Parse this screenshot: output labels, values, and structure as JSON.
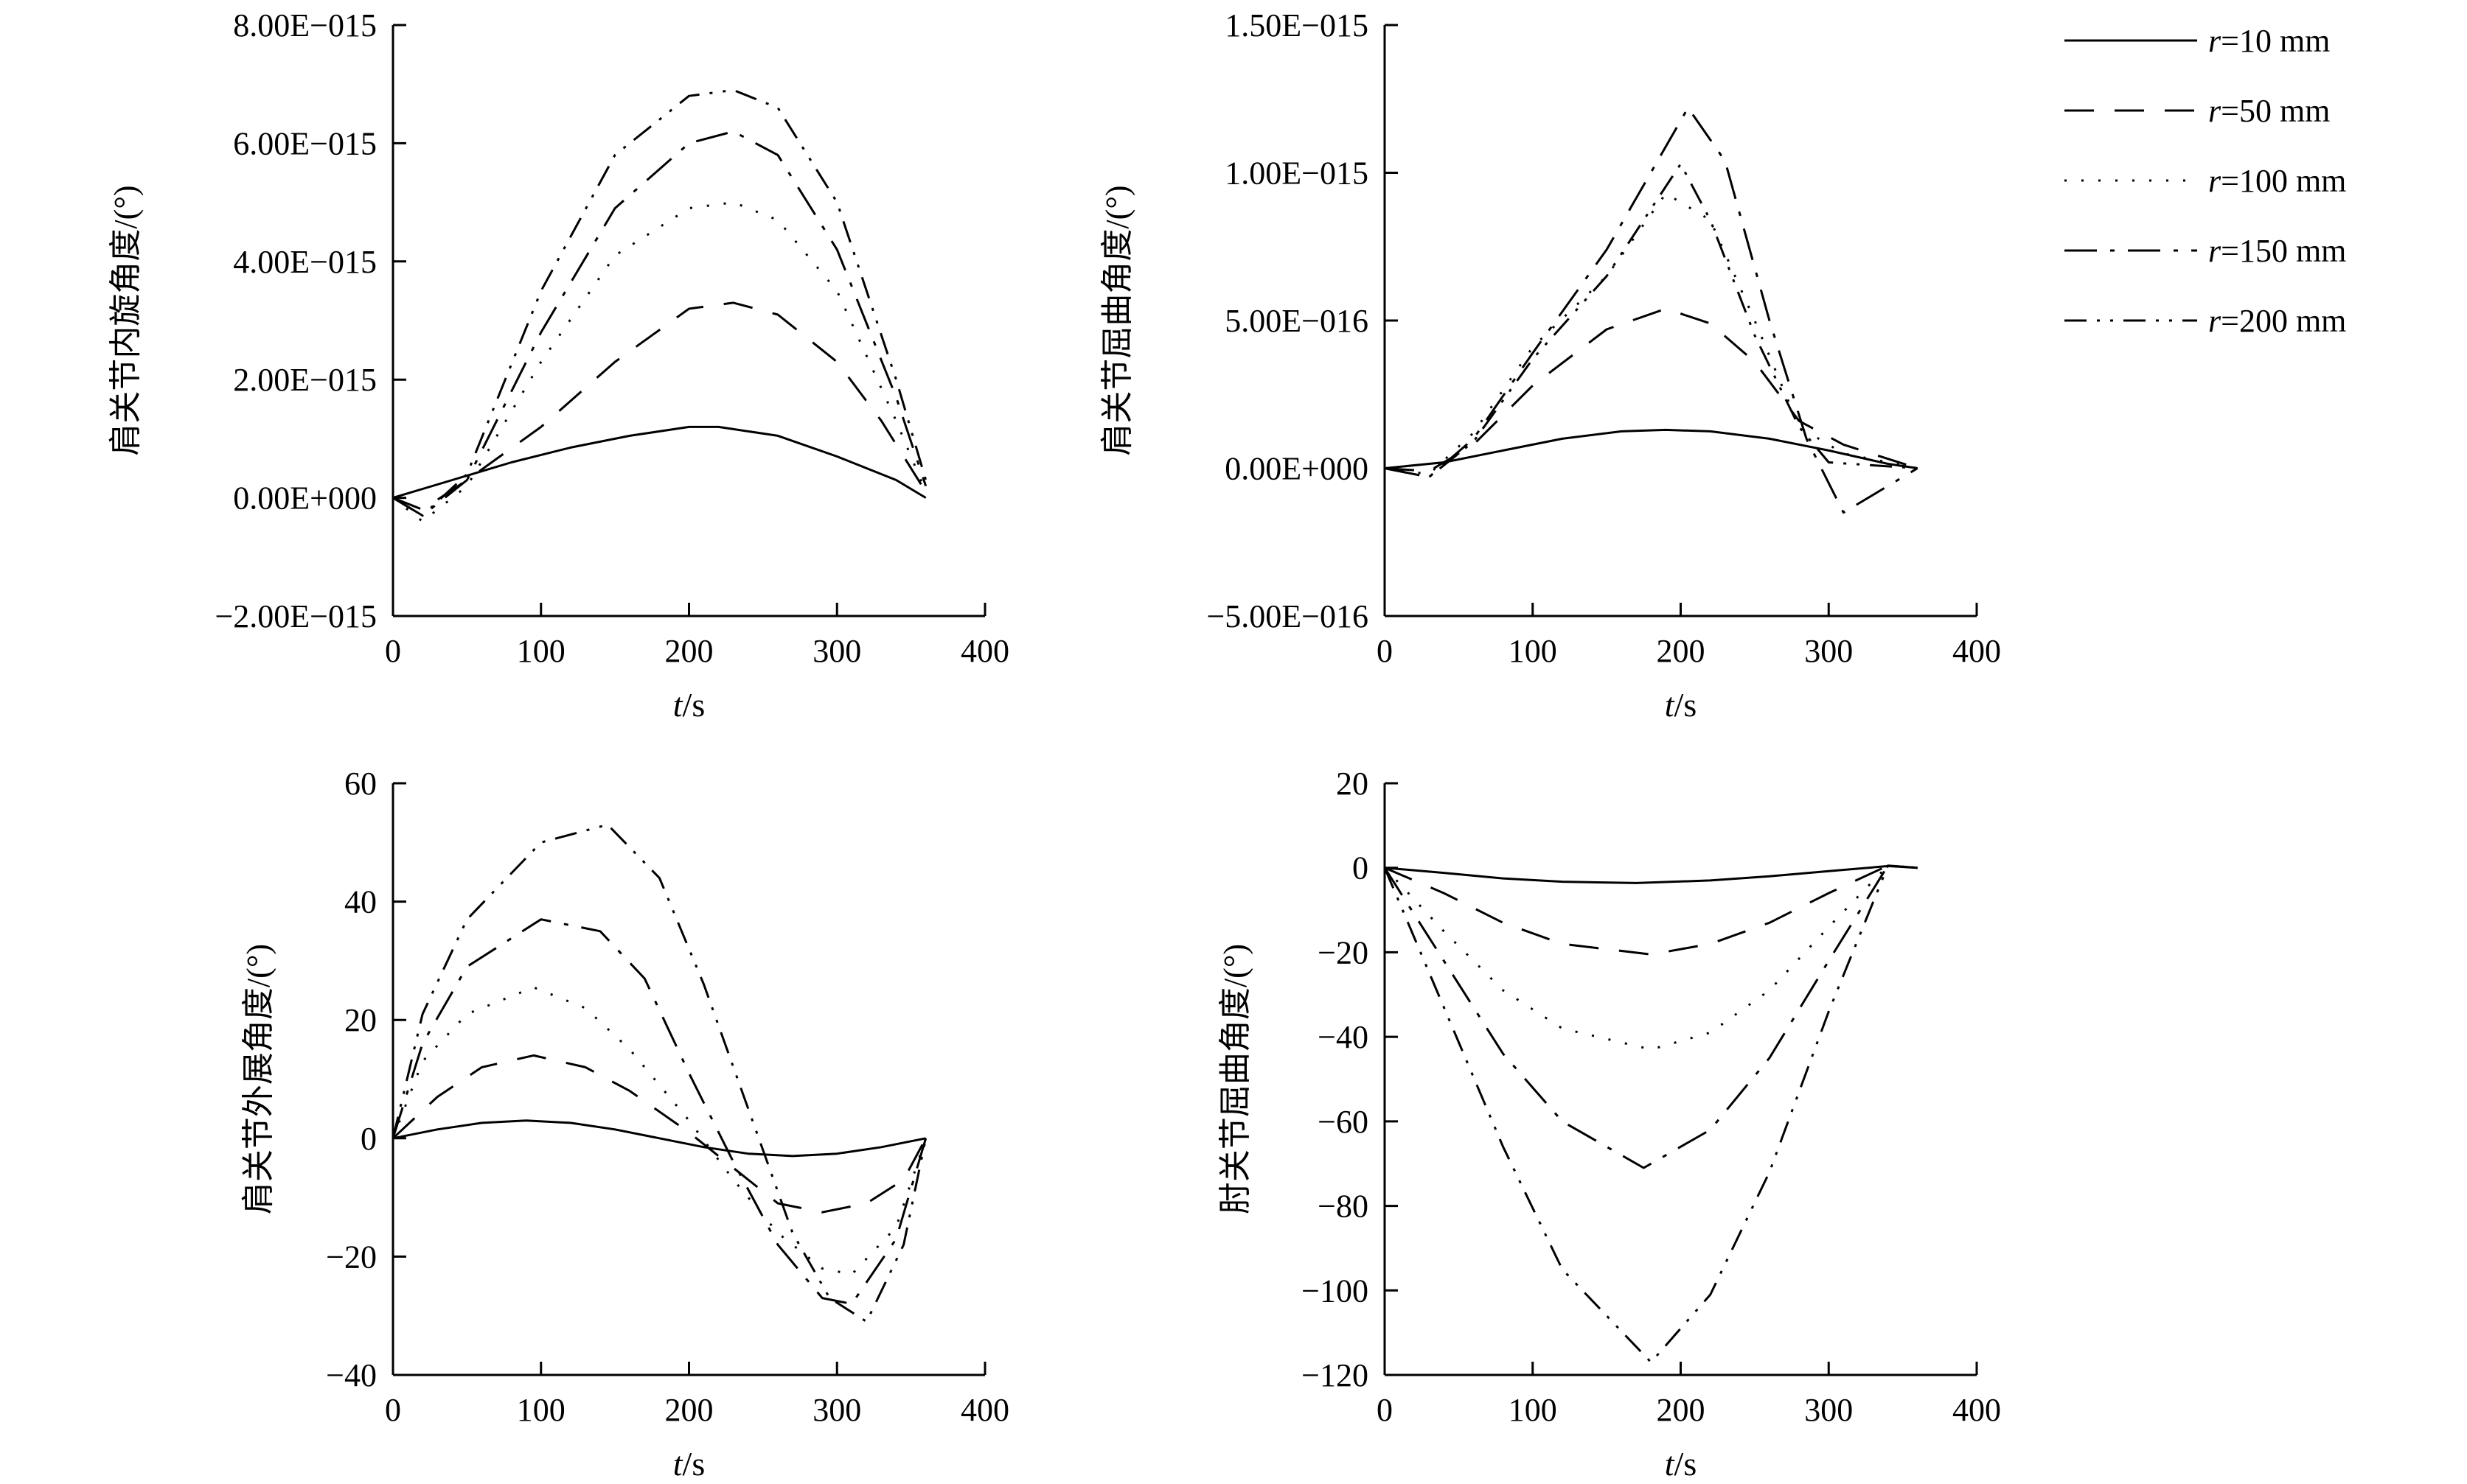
{
  "legend": {
    "items": [
      {
        "var": "r",
        "text": "=10 mm",
        "dash": "solid"
      },
      {
        "var": "r",
        "text": "=50 mm",
        "dash": "dash"
      },
      {
        "var": "r",
        "text": "=100 mm",
        "dash": "dot"
      },
      {
        "var": "r",
        "text": "=150 mm",
        "dash": "longdashdot"
      },
      {
        "var": "r",
        "text": "=200 mm",
        "dash": "dashdotdot"
      }
    ]
  },
  "chart_data": [
    {
      "type": "line",
      "ylabel": "肩关节内旋角度/(°)",
      "xlabel_var": "t",
      "xlabel_unit": "/s",
      "xlim": [
        0,
        400
      ],
      "xticks": [
        0,
        100,
        200,
        300,
        400
      ],
      "ylim": [
        -2e-15,
        8e-15
      ],
      "yticks": [
        -2e-15,
        0,
        2e-15,
        4e-15,
        6e-15,
        8e-15
      ],
      "ytick_labels": [
        "−2.00E−015",
        "0.00E+000",
        "2.00E−015",
        "4.00E−015",
        "6.00E−015",
        "8.00E−015"
      ],
      "series": [
        {
          "name": "r=10 mm",
          "dash": "solid",
          "x": [
            0,
            40,
            80,
            120,
            160,
            200,
            220,
            260,
            300,
            340,
            360
          ],
          "y": [
            0,
            3e-16,
            6e-16,
            8.5e-16,
            1.05e-15,
            1.2e-15,
            1.2e-15,
            1.05e-15,
            7e-16,
            3e-16,
            0
          ]
        },
        {
          "name": "r=50 mm",
          "dash": "dash",
          "x": [
            0,
            20,
            50,
            100,
            150,
            200,
            230,
            260,
            300,
            330,
            360
          ],
          "y": [
            0,
            -2e-16,
            3e-16,
            1.2e-15,
            2.3e-15,
            3.2e-15,
            3.3e-15,
            3.1e-15,
            2.3e-15,
            1.3e-15,
            1e-16
          ]
        },
        {
          "name": "r=100 mm",
          "dash": "dot",
          "x": [
            0,
            20,
            50,
            100,
            150,
            200,
            230,
            260,
            300,
            340,
            360
          ],
          "y": [
            0,
            -4e-16,
            2e-16,
            2.3e-15,
            4.1e-15,
            4.9e-15,
            5e-15,
            4.7e-15,
            3.5e-15,
            1.3e-15,
            1e-16
          ]
        },
        {
          "name": "r=150 mm",
          "dash": "longdashdot",
          "x": [
            0,
            20,
            50,
            100,
            150,
            200,
            230,
            260,
            300,
            340,
            360
          ],
          "y": [
            0,
            -3e-16,
            3e-16,
            2.8e-15,
            4.9e-15,
            6e-15,
            6.2e-15,
            5.8e-15,
            4.2e-15,
            1.7e-15,
            2e-16
          ]
        },
        {
          "name": "r=200 mm",
          "dash": "dashdotdot",
          "x": [
            0,
            20,
            50,
            100,
            150,
            200,
            230,
            260,
            300,
            340,
            360
          ],
          "y": [
            0,
            -3e-16,
            4e-16,
            3.5e-15,
            5.8e-15,
            6.8e-15,
            6.9e-15,
            6.6e-15,
            5e-15,
            2e-15,
            3e-16
          ]
        }
      ]
    },
    {
      "type": "line",
      "ylabel": "肩关节屈曲角度/(°)",
      "xlabel_var": "t",
      "xlabel_unit": "/s",
      "xlim": [
        0,
        400
      ],
      "xticks": [
        0,
        100,
        200,
        300,
        400
      ],
      "ylim": [
        -5e-16,
        1.5e-15
      ],
      "yticks": [
        -5e-16,
        0,
        5e-16,
        1e-15,
        1.5e-15
      ],
      "ytick_labels": [
        "−5.00E−016",
        "0.00E+000",
        "5.00E−016",
        "1.00E−015",
        "1.50E−015"
      ],
      "series": [
        {
          "name": "r=10 mm",
          "dash": "solid",
          "x": [
            0,
            40,
            80,
            120,
            160,
            190,
            220,
            260,
            300,
            340,
            360
          ],
          "y": [
            0,
            2e-17,
            6e-17,
            1e-16,
            1.25e-16,
            1.3e-16,
            1.25e-16,
            1e-16,
            6e-17,
            1.5e-17,
            0
          ]
        },
        {
          "name": "r=50 mm",
          "dash": "dash",
          "x": [
            0,
            30,
            60,
            100,
            150,
            190,
            220,
            250,
            280,
            310,
            360
          ],
          "y": [
            0,
            -1e-17,
            8e-17,
            2.8e-16,
            4.7e-16,
            5.4e-16,
            4.9e-16,
            3.6e-16,
            1.6e-16,
            8e-17,
            0
          ]
        },
        {
          "name": "r=100 mm",
          "dash": "dot",
          "x": [
            0,
            30,
            60,
            100,
            150,
            190,
            220,
            250,
            280,
            310,
            360
          ],
          "y": [
            0,
            -2e-17,
            1.2e-16,
            4.1e-16,
            6.5e-16,
            9.3e-16,
            8.4e-16,
            5e-16,
            1.4e-16,
            5e-17,
            0
          ]
        },
        {
          "name": "r=150 mm",
          "dash": "longdashdot",
          "x": [
            0,
            30,
            60,
            100,
            150,
            205,
            230,
            260,
            285,
            310,
            360
          ],
          "y": [
            0,
            -3e-17,
            1e-16,
            3.9e-16,
            7.4e-16,
            1.22e-15,
            1.04e-15,
            5e-16,
            1e-16,
            -1.5e-16,
            0
          ]
        },
        {
          "name": "r=200 mm",
          "dash": "dashdotdot",
          "x": [
            0,
            30,
            60,
            100,
            150,
            200,
            220,
            250,
            280,
            300,
            360
          ],
          "y": [
            0,
            -3e-17,
            9e-17,
            3.7e-16,
            6.5e-16,
            1.03e-15,
            8.4e-16,
            4.5e-16,
            1.4e-16,
            2e-17,
            0
          ]
        }
      ]
    },
    {
      "type": "line",
      "ylabel": "肩关节外展角度/(°)",
      "xlabel_var": "t",
      "xlabel_unit": "/s",
      "xlim": [
        0,
        400
      ],
      "xticks": [
        0,
        100,
        200,
        300,
        400
      ],
      "ylim": [
        -40,
        60
      ],
      "yticks": [
        -40,
        -20,
        0,
        20,
        40,
        60
      ],
      "ytick_labels": [
        "−40",
        "−20",
        "0",
        "20",
        "40",
        "60"
      ],
      "series": [
        {
          "name": "r=10 mm",
          "dash": "solid",
          "x": [
            0,
            30,
            60,
            90,
            120,
            150,
            180,
            210,
            240,
            270,
            300,
            330,
            360
          ],
          "y": [
            0,
            1.5,
            2.6,
            3.0,
            2.6,
            1.5,
            0,
            -1.5,
            -2.6,
            -3.0,
            -2.6,
            -1.5,
            0
          ]
        },
        {
          "name": "r=50 mm",
          "dash": "dash",
          "x": [
            0,
            30,
            60,
            95,
            130,
            160,
            200,
            230,
            260,
            290,
            320,
            345,
            360
          ],
          "y": [
            0,
            7,
            12,
            14,
            12,
            8,
            1,
            -5,
            -11,
            -12.5,
            -11,
            -7,
            0
          ]
        },
        {
          "name": "r=100 mm",
          "dash": "dot",
          "x": [
            0,
            20,
            50,
            95,
            130,
            160,
            200,
            230,
            260,
            290,
            310,
            340,
            360
          ],
          "y": [
            0,
            13,
            21,
            25.5,
            22,
            15,
            3,
            -7,
            -16,
            -22,
            -23,
            -15,
            0
          ]
        },
        {
          "name": "r=150 mm",
          "dash": "longdashdot",
          "x": [
            0,
            20,
            50,
            100,
            140,
            170,
            200,
            230,
            260,
            290,
            310,
            340,
            360
          ],
          "y": [
            0,
            16,
            29,
            37,
            35,
            27,
            11,
            -4,
            -18,
            -27,
            -28,
            -17,
            0
          ]
        },
        {
          "name": "r=200 mm",
          "dash": "dashdotdot",
          "x": [
            0,
            20,
            50,
            100,
            145,
            180,
            210,
            240,
            270,
            295,
            320,
            345,
            360
          ],
          "y": [
            0,
            21,
            37,
            50,
            53,
            44,
            26,
            5,
            -16,
            -27,
            -31,
            -18,
            0
          ]
        }
      ]
    },
    {
      "type": "line",
      "ylabel": "肘关节屈曲角度/(°)",
      "xlabel_var": "t",
      "xlabel_unit": "/s",
      "xlim": [
        0,
        400
      ],
      "xticks": [
        0,
        100,
        200,
        300,
        400
      ],
      "ylim": [
        -120,
        20
      ],
      "yticks": [
        -120,
        -100,
        -80,
        -60,
        -40,
        -20,
        0,
        20
      ],
      "ytick_labels": [
        "−120",
        "−100",
        "−80",
        "−60",
        "−40",
        "−20",
        "0",
        "20"
      ],
      "series": [
        {
          "name": "r=10 mm",
          "dash": "solid",
          "x": [
            0,
            40,
            80,
            120,
            170,
            220,
            260,
            300,
            340,
            360
          ],
          "y": [
            0,
            -1.2,
            -2.5,
            -3.3,
            -3.6,
            -3.0,
            -2.0,
            -0.8,
            0.4,
            0
          ]
        },
        {
          "name": "r=50 mm",
          "dash": "dash",
          "x": [
            0,
            40,
            80,
            120,
            180,
            220,
            260,
            300,
            340,
            360
          ],
          "y": [
            0,
            -6,
            -13,
            -18,
            -20.5,
            -18,
            -13,
            -6,
            0.5,
            0
          ]
        },
        {
          "name": "r=100 mm",
          "dash": "dot",
          "x": [
            0,
            40,
            80,
            120,
            180,
            220,
            260,
            300,
            340,
            360
          ],
          "y": [
            0,
            -15,
            -29,
            -38,
            -43,
            -39,
            -29,
            -14,
            0.5,
            0
          ]
        },
        {
          "name": "r=150 mm",
          "dash": "longdashdot",
          "x": [
            0,
            40,
            80,
            120,
            175,
            220,
            260,
            300,
            340,
            360
          ],
          "y": [
            0,
            -22,
            -44,
            -60,
            -71,
            -62,
            -45,
            -22,
            0.5,
            0
          ]
        },
        {
          "name": "r=200 mm",
          "dash": "dashdotdot",
          "x": [
            0,
            40,
            80,
            120,
            180,
            220,
            260,
            300,
            340,
            360
          ],
          "y": [
            0,
            -33,
            -66,
            -95,
            -117,
            -101,
            -72,
            -34,
            0.5,
            0
          ]
        }
      ]
    }
  ]
}
